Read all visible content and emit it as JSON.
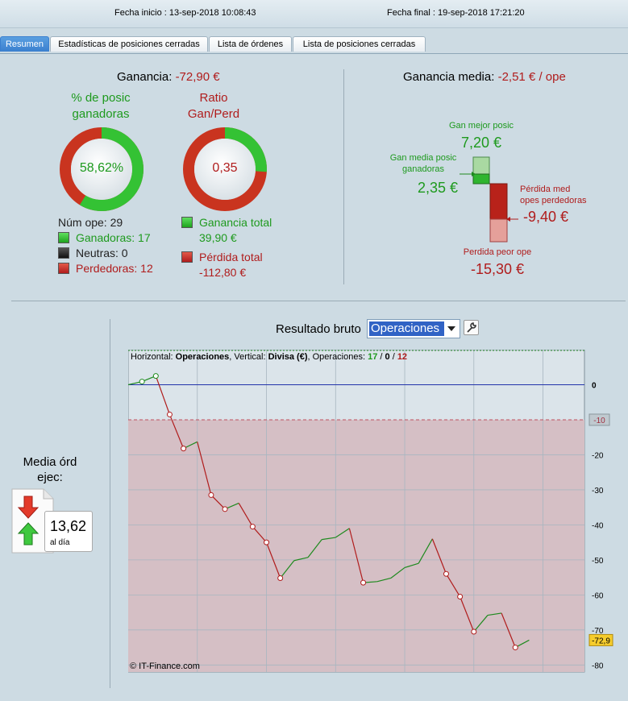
{
  "header": {
    "start_label": "Fecha inicio : 13-sep-2018 10:08:43",
    "end_label": "Fecha final : 19-sep-2018 17:21:20"
  },
  "tabs": [
    "Resumen",
    "Estadísticas de posiciones cerradas",
    "Lista de órdenes",
    "Lista de posiciones cerradas"
  ],
  "summary": {
    "ganancia_label": "Ganancia:",
    "ganancia_value": "-72,90 €",
    "pct_title_1": "% de posic",
    "pct_title_2": "ganadoras",
    "pct_value": "58,62%",
    "pct_fraction": 0.5862,
    "ratio_title_1": "Ratio",
    "ratio_title_2": "Gan/Perd",
    "ratio_value": "0,35",
    "ratio_fraction": 0.26,
    "num_ope": "Núm ope: 29",
    "ganadoras": "Ganadoras: 17",
    "neutras": "Neutras: 0",
    "perdedoras": "Perdedoras: 12",
    "ganancia_total_label": "Ganancia total",
    "ganancia_total_value": "39,90 €",
    "perdida_total_label": "Pérdida total",
    "perdida_total_value": "-112,80 €"
  },
  "avg": {
    "label": "Ganancia media:",
    "value": "-2,51 € / ope",
    "best_label": "Gan mejor posic",
    "best_value": "7,20 €",
    "avg_win_label_1": "Gan media posic",
    "avg_win_label_2": "ganadoras",
    "avg_win_value": "2,35 €",
    "avg_loss_label_1": "Pérdida med",
    "avg_loss_label_2": "opes perdedoras",
    "avg_loss_value": "-9,40 €",
    "worst_label": "Perdida peor ope",
    "worst_value": "-15,30 €"
  },
  "media_ord": {
    "title_1": "Media órd",
    "title_2": "ejec:",
    "value": "13,62",
    "unit": "al día"
  },
  "chart_header": {
    "label": "Resultado bruto",
    "select_value": "Operaciones"
  },
  "chart_info": {
    "h_label": "Horizontal: ",
    "h_value": "Operaciones",
    "v_label": ", Vertical: ",
    "v_value": "Divisa (€)",
    "ops_label": ", Operaciones: ",
    "ops_win": "17",
    "ops_sep1": " / ",
    "ops_neutral": "0",
    "ops_sep2": " / ",
    "ops_loss": "12"
  },
  "copyright": "© IT-Finance.com",
  "colors": {
    "win": "#1e8a1e",
    "loss": "#b01c1c",
    "zero_line": "#2233aa",
    "loss_zone": "#d5bfc5"
  },
  "chart_data": {
    "type": "line",
    "x": [
      0,
      1,
      2,
      3,
      4,
      5,
      6,
      7,
      8,
      9,
      10,
      11,
      12,
      13,
      14,
      15,
      16,
      17,
      18,
      19,
      20,
      21,
      22,
      23,
      24,
      25,
      26,
      27,
      28,
      29
    ],
    "y": [
      0,
      0.9,
      2.5,
      -8.5,
      -18.2,
      -16.3,
      -31.5,
      -35.5,
      -33.8,
      -40.5,
      -45,
      -55.2,
      -50.2,
      -49.3,
      -44.2,
      -43.6,
      -41,
      -56.5,
      -56.2,
      -55.2,
      -52.2,
      -51,
      -44,
      -54,
      -60.5,
      -70.5,
      -65.8,
      -65.2,
      -75,
      -72.9
    ],
    "outcome": [
      "start",
      "win",
      "win",
      "loss",
      "loss",
      "win",
      "loss",
      "loss",
      "win",
      "loss",
      "loss",
      "loss",
      "win",
      "win",
      "win",
      "win",
      "win",
      "loss",
      "win",
      "win",
      "win",
      "win",
      "win",
      "loss",
      "loss",
      "loss",
      "win",
      "win",
      "loss",
      "win"
    ],
    "xlim": [
      0,
      33
    ],
    "ylim": [
      -82,
      10
    ],
    "x_ticks": [
      5,
      10,
      15,
      20,
      25,
      30
    ],
    "y_ticks": [
      0,
      -20,
      -30,
      -40,
      -50,
      -60,
      -70,
      -80
    ],
    "threshold": -10,
    "threshold_label": "-10",
    "last_value_label": "-72,9",
    "xlabel": "Operaciones",
    "ylabel": "Divisa (€)"
  }
}
